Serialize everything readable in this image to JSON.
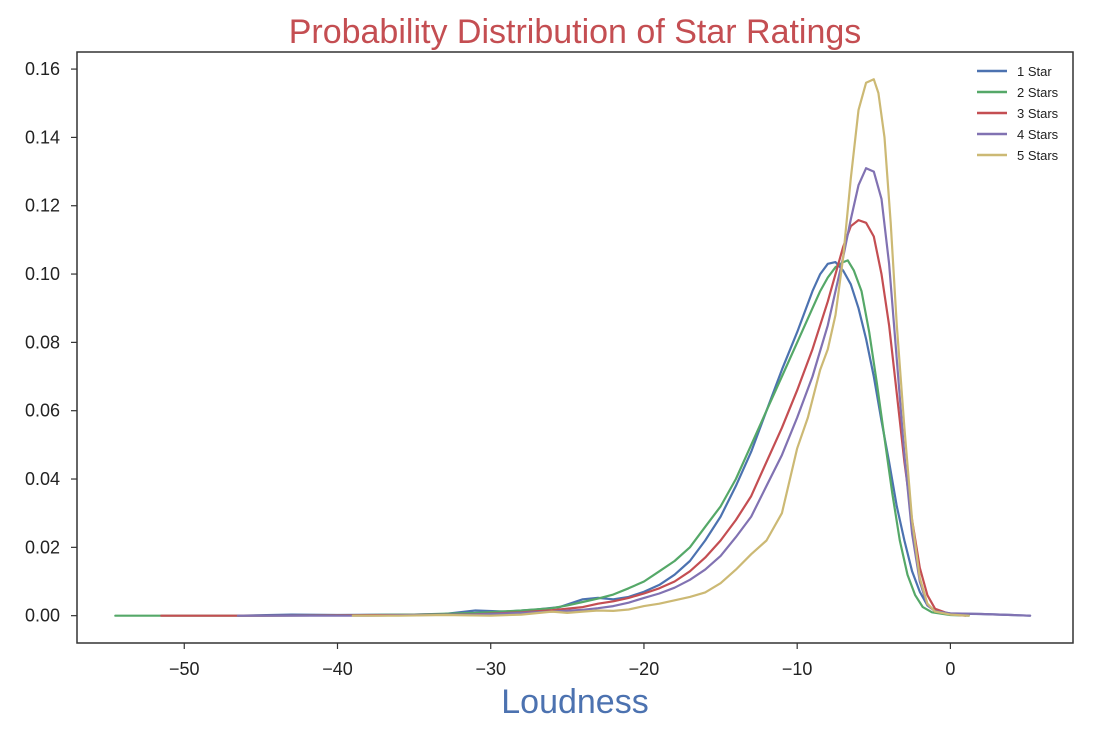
{
  "chart_data": {
    "type": "line",
    "title": "Probability Distribution of Star Ratings",
    "title_color": "#c44e52",
    "xlabel": "Loudness",
    "xlabel_color": "#4c72b0",
    "ylabel": "",
    "xlim": [
      -57,
      8
    ],
    "ylim": [
      -0.008,
      0.165
    ],
    "xticks": [
      -50,
      -40,
      -30,
      -20,
      -10,
      0
    ],
    "xtick_labels": [
      "−50",
      "−40",
      "−30",
      "−20",
      "−10",
      "0"
    ],
    "yticks": [
      0.0,
      0.02,
      0.04,
      0.06,
      0.08,
      0.1,
      0.12,
      0.14,
      0.16
    ],
    "ytick_labels": [
      "0.00",
      "0.02",
      "0.04",
      "0.06",
      "0.08",
      "0.10",
      "0.12",
      "0.14",
      "0.16"
    ],
    "grid": false,
    "legend_position": "top-right",
    "series": [
      {
        "name": "1 Star",
        "color": "#4c72b0",
        "points": [
          [
            -46.5,
            0.0
          ],
          [
            -43,
            0.0003
          ],
          [
            -40,
            0.0002
          ],
          [
            -35,
            0.0003
          ],
          [
            -33,
            0.0005
          ],
          [
            -31,
            0.0015
          ],
          [
            -29,
            0.0012
          ],
          [
            -27,
            0.0018
          ],
          [
            -25.5,
            0.0025
          ],
          [
            -24,
            0.0048
          ],
          [
            -23,
            0.0052
          ],
          [
            -22,
            0.0048
          ],
          [
            -21,
            0.0055
          ],
          [
            -20,
            0.007
          ],
          [
            -19,
            0.009
          ],
          [
            -18,
            0.012
          ],
          [
            -17,
            0.016
          ],
          [
            -16,
            0.022
          ],
          [
            -15,
            0.029
          ],
          [
            -14,
            0.038
          ],
          [
            -13,
            0.048
          ],
          [
            -12,
            0.06
          ],
          [
            -11,
            0.072
          ],
          [
            -10,
            0.083
          ],
          [
            -9,
            0.095
          ],
          [
            -8.5,
            0.1
          ],
          [
            -8,
            0.103
          ],
          [
            -7.5,
            0.1035
          ],
          [
            -7,
            0.101
          ],
          [
            -6.5,
            0.097
          ],
          [
            -6,
            0.09
          ],
          [
            -5.5,
            0.081
          ],
          [
            -5,
            0.07
          ],
          [
            -4.5,
            0.057
          ],
          [
            -4,
            0.045
          ],
          [
            -3.5,
            0.032
          ],
          [
            -3,
            0.022
          ],
          [
            -2.5,
            0.013
          ],
          [
            -2,
            0.007
          ],
          [
            -1.5,
            0.003
          ],
          [
            -1,
            0.0015
          ],
          [
            0,
            0.0006
          ],
          [
            2,
            0.0005
          ],
          [
            4,
            0.0002
          ],
          [
            5.2,
            0.0
          ]
        ]
      },
      {
        "name": "2 Stars",
        "color": "#55a868",
        "points": [
          [
            -54.5,
            0.0
          ],
          [
            -50,
            0.0
          ],
          [
            -45,
            0.0
          ],
          [
            -40,
            0.0001
          ],
          [
            -35,
            0.0003
          ],
          [
            -31,
            0.0008
          ],
          [
            -28,
            0.0015
          ],
          [
            -26,
            0.0022
          ],
          [
            -25,
            0.003
          ],
          [
            -24,
            0.004
          ],
          [
            -23,
            0.005
          ],
          [
            -22,
            0.0062
          ],
          [
            -21,
            0.008
          ],
          [
            -20,
            0.01
          ],
          [
            -19,
            0.013
          ],
          [
            -18,
            0.016
          ],
          [
            -17,
            0.02
          ],
          [
            -16,
            0.026
          ],
          [
            -15,
            0.032
          ],
          [
            -14,
            0.04
          ],
          [
            -13,
            0.05
          ],
          [
            -12,
            0.06
          ],
          [
            -11,
            0.07
          ],
          [
            -10,
            0.08
          ],
          [
            -9,
            0.09
          ],
          [
            -8.5,
            0.095
          ],
          [
            -8,
            0.099
          ],
          [
            -7.5,
            0.102
          ],
          [
            -7,
            0.1035
          ],
          [
            -6.7,
            0.104
          ],
          [
            -6.3,
            0.101
          ],
          [
            -5.8,
            0.095
          ],
          [
            -5.3,
            0.083
          ],
          [
            -4.8,
            0.068
          ],
          [
            -4.3,
            0.052
          ],
          [
            -3.8,
            0.036
          ],
          [
            -3.3,
            0.022
          ],
          [
            -2.8,
            0.012
          ],
          [
            -2.3,
            0.006
          ],
          [
            -1.8,
            0.0025
          ],
          [
            -1.2,
            0.001
          ],
          [
            0,
            0.0002
          ],
          [
            1.2,
            0.0
          ]
        ]
      },
      {
        "name": "3 Stars",
        "color": "#c44e52",
        "points": [
          [
            -51.5,
            0.0
          ],
          [
            -45,
            0.0
          ],
          [
            -40,
            0.0001
          ],
          [
            -35,
            0.0002
          ],
          [
            -31,
            0.0004
          ],
          [
            -28,
            0.001
          ],
          [
            -26,
            0.0016
          ],
          [
            -24,
            0.0025
          ],
          [
            -23,
            0.0035
          ],
          [
            -22,
            0.0042
          ],
          [
            -21,
            0.0052
          ],
          [
            -20,
            0.0065
          ],
          [
            -19,
            0.008
          ],
          [
            -18,
            0.01
          ],
          [
            -17,
            0.013
          ],
          [
            -16,
            0.017
          ],
          [
            -15,
            0.022
          ],
          [
            -14,
            0.028
          ],
          [
            -13,
            0.035
          ],
          [
            -12,
            0.045
          ],
          [
            -11,
            0.055
          ],
          [
            -10,
            0.066
          ],
          [
            -9,
            0.078
          ],
          [
            -8,
            0.092
          ],
          [
            -7.5,
            0.1
          ],
          [
            -7,
            0.108
          ],
          [
            -6.5,
            0.114
          ],
          [
            -6,
            0.1158
          ],
          [
            -5.5,
            0.115
          ],
          [
            -5,
            0.111
          ],
          [
            -4.5,
            0.1
          ],
          [
            -4,
            0.085
          ],
          [
            -3.5,
            0.065
          ],
          [
            -3,
            0.045
          ],
          [
            -2.5,
            0.028
          ],
          [
            -2,
            0.014
          ],
          [
            -1.5,
            0.006
          ],
          [
            -1,
            0.002
          ],
          [
            0,
            0.0004
          ],
          [
            1,
            0.0
          ]
        ]
      },
      {
        "name": "4 Stars",
        "color": "#8172b2",
        "points": [
          [
            -46.5,
            0.0
          ],
          [
            -42,
            0.0
          ],
          [
            -38,
            0.0
          ],
          [
            -35,
            0.0002
          ],
          [
            -31,
            0.0003
          ],
          [
            -28,
            0.0008
          ],
          [
            -26,
            0.0012
          ],
          [
            -24,
            0.0017
          ],
          [
            -23,
            0.0022
          ],
          [
            -22,
            0.0028
          ],
          [
            -21,
            0.0038
          ],
          [
            -20,
            0.0052
          ],
          [
            -19,
            0.0065
          ],
          [
            -18,
            0.0082
          ],
          [
            -17,
            0.0105
          ],
          [
            -16,
            0.0135
          ],
          [
            -15,
            0.0175
          ],
          [
            -14,
            0.023
          ],
          [
            -13,
            0.029
          ],
          [
            -12,
            0.038
          ],
          [
            -11,
            0.047
          ],
          [
            -10,
            0.058
          ],
          [
            -9,
            0.07
          ],
          [
            -8,
            0.085
          ],
          [
            -7.5,
            0.095
          ],
          [
            -7,
            0.105
          ],
          [
            -6.5,
            0.116
          ],
          [
            -6,
            0.126
          ],
          [
            -5.5,
            0.131
          ],
          [
            -5,
            0.13
          ],
          [
            -4.5,
            0.122
          ],
          [
            -4,
            0.103
          ],
          [
            -3.5,
            0.075
          ],
          [
            -3,
            0.047
          ],
          [
            -2.5,
            0.024
          ],
          [
            -2,
            0.01
          ],
          [
            -1.5,
            0.003
          ],
          [
            -1,
            0.0013
          ],
          [
            0,
            0.0007
          ],
          [
            2,
            0.0005
          ],
          [
            4,
            0.0002
          ],
          [
            5.2,
            0.0
          ]
        ]
      },
      {
        "name": "5 Stars",
        "color": "#ccb974",
        "points": [
          [
            -39,
            0.0
          ],
          [
            -36,
            0.0
          ],
          [
            -33,
            0.0002
          ],
          [
            -30,
            0.0
          ],
          [
            -28,
            0.0003
          ],
          [
            -26,
            0.0012
          ],
          [
            -25,
            0.0008
          ],
          [
            -24,
            0.0012
          ],
          [
            -23,
            0.0015
          ],
          [
            -22,
            0.0014
          ],
          [
            -21,
            0.0018
          ],
          [
            -20,
            0.0028
          ],
          [
            -19,
            0.0035
          ],
          [
            -18,
            0.0045
          ],
          [
            -17,
            0.0055
          ],
          [
            -16,
            0.0068
          ],
          [
            -15,
            0.0095
          ],
          [
            -14,
            0.0135
          ],
          [
            -13,
            0.018
          ],
          [
            -12,
            0.022
          ],
          [
            -11,
            0.03
          ],
          [
            -10,
            0.049
          ],
          [
            -9.3,
            0.058
          ],
          [
            -8.5,
            0.072
          ],
          [
            -8,
            0.078
          ],
          [
            -7.5,
            0.088
          ],
          [
            -7,
            0.105
          ],
          [
            -6.5,
            0.128
          ],
          [
            -6,
            0.148
          ],
          [
            -5.5,
            0.156
          ],
          [
            -5,
            0.157
          ],
          [
            -4.7,
            0.153
          ],
          [
            -4.3,
            0.14
          ],
          [
            -3.9,
            0.115
          ],
          [
            -3.5,
            0.085
          ],
          [
            -3,
            0.055
          ],
          [
            -2.5,
            0.028
          ],
          [
            -2,
            0.011
          ],
          [
            -1.5,
            0.0035
          ],
          [
            -1,
            0.0012
          ],
          [
            0,
            0.0003
          ],
          [
            1.2,
            0.0
          ]
        ]
      }
    ]
  }
}
